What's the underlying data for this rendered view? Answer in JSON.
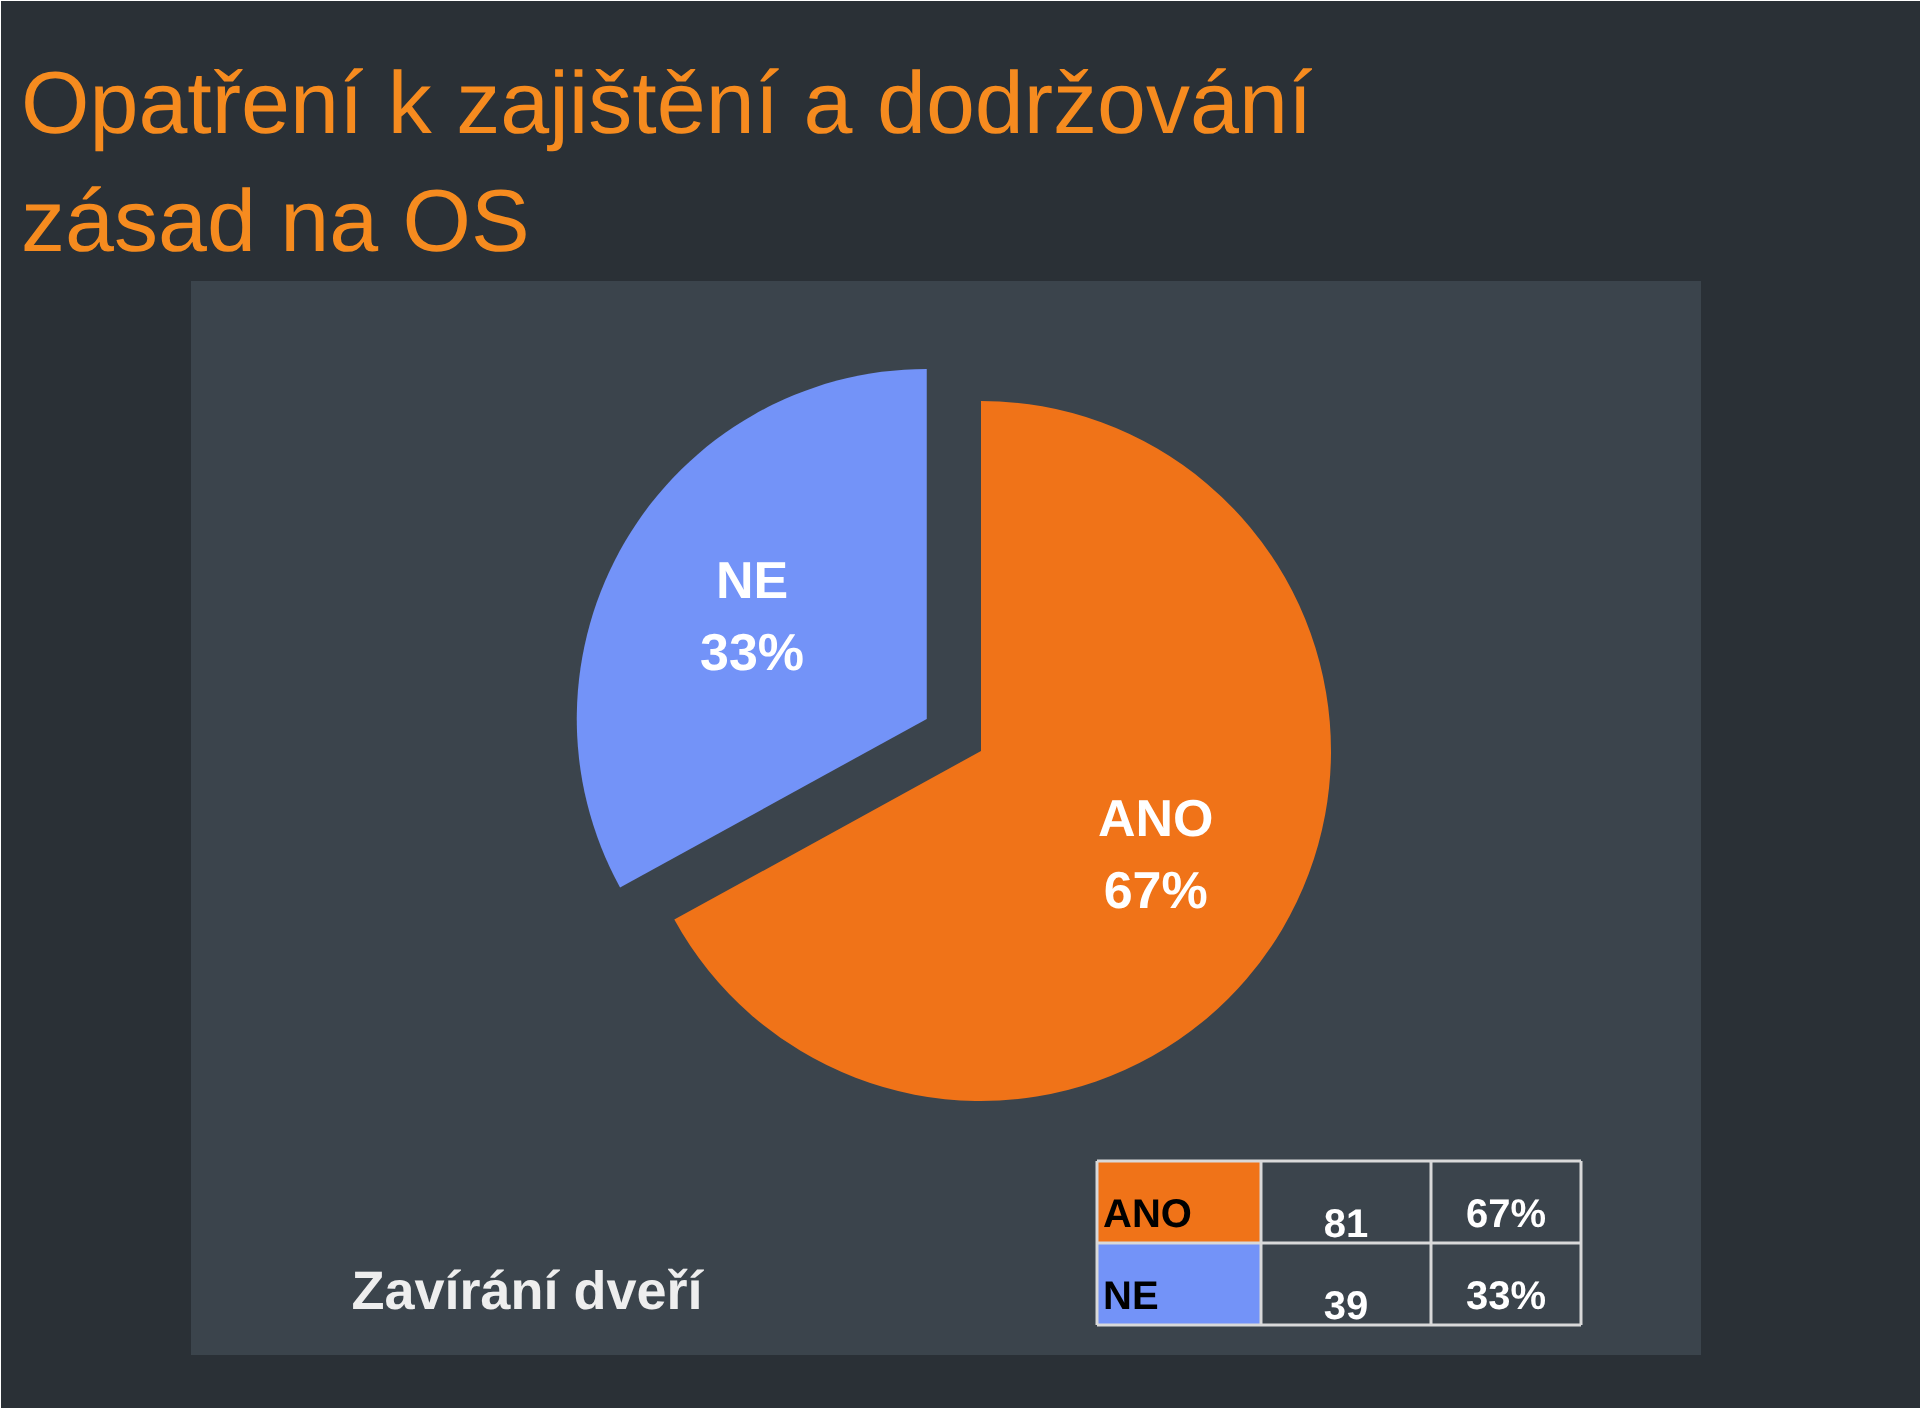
{
  "chart_data": {
    "type": "pie",
    "title": "Opatření k zajištění a dodržování zásad na OS",
    "subtitle": "Zavírání dveří",
    "categories": [
      "ANO",
      "NE"
    ],
    "values": [
      67,
      33
    ],
    "colors": [
      "#f07318",
      "#7393f8"
    ],
    "value_labels": [
      "67%",
      "33%"
    ],
    "annotations": [
      "81",
      "39"
    ]
  }
}
